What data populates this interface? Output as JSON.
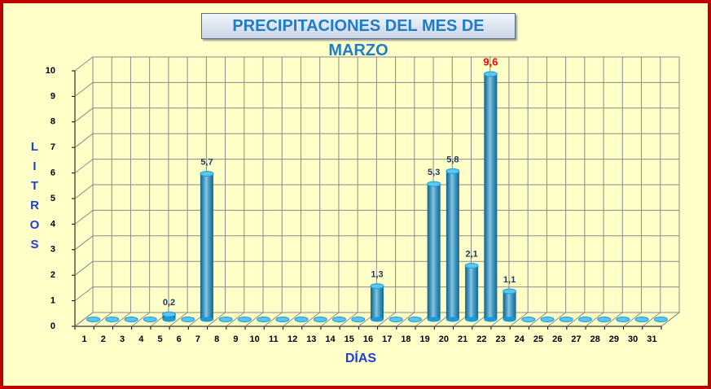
{
  "chart_data": {
    "type": "bar3d",
    "title": "PRECIPITACIONES DEL MES DE MARZO",
    "x_label": "DÍAS",
    "y_label": "LITROS",
    "categories": [
      "1",
      "2",
      "3",
      "4",
      "5",
      "6",
      "7",
      "8",
      "9",
      "10",
      "11",
      "12",
      "13",
      "14",
      "15",
      "16",
      "17",
      "18",
      "19",
      "20",
      "21",
      "22",
      "23",
      "24",
      "25",
      "26",
      "27",
      "28",
      "29",
      "30",
      "31"
    ],
    "values": [
      0,
      0,
      0,
      0,
      0.2,
      0,
      5.7,
      0,
      0,
      0,
      0,
      0,
      0,
      0,
      0,
      1.3,
      0,
      0,
      5.3,
      5.8,
      2.1,
      9.6,
      1.1,
      0,
      0,
      0,
      0,
      0,
      0,
      0,
      0
    ],
    "value_labels": [
      null,
      null,
      null,
      null,
      "0,2",
      null,
      "5,7",
      null,
      null,
      null,
      null,
      null,
      null,
      null,
      null,
      "1,3",
      null,
      null,
      "5,3",
      "5,8",
      "2,1",
      "9,6",
      "1,1",
      null,
      null,
      null,
      null,
      null,
      null,
      null,
      null
    ],
    "color": "#1a9bd7",
    "value_label_color": "#1f3864",
    "max_label_color": "#ff0000",
    "ylim": [
      0,
      10
    ],
    "yticks": [
      0,
      1,
      2,
      3,
      4,
      5,
      6,
      7,
      8,
      9,
      10
    ],
    "grid": true
  }
}
